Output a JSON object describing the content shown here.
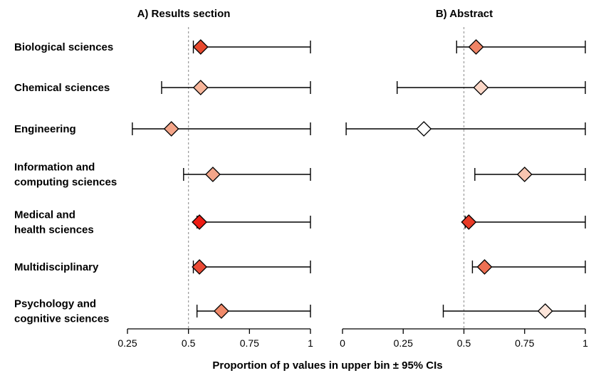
{
  "chart_data": [
    {
      "type": "scatter",
      "title": "A) Results section",
      "xlabel": "Proportion of p values in upper bin ± 95% CIs",
      "xlim": [
        0.25,
        1
      ],
      "xticks": [
        "0.25",
        "0.5",
        "0.75",
        "1"
      ],
      "reference_line": 0.5,
      "categories": [
        "Biological sciences",
        "Chemical sciences",
        "Engineering",
        "Information and computing sciences",
        "Medical and health sciences",
        "Multidisciplinary",
        "Psychology and cognitive sciences"
      ],
      "points": [
        {
          "estimate": 0.55,
          "ci_low": 0.52,
          "ci_high": 1.0,
          "color": "#e8492e"
        },
        {
          "estimate": 0.55,
          "ci_low": 0.39,
          "ci_high": 1.0,
          "color": "#f7b59a"
        },
        {
          "estimate": 0.43,
          "ci_low": 0.27,
          "ci_high": 1.0,
          "color": "#f4a589"
        },
        {
          "estimate": 0.6,
          "ci_low": 0.48,
          "ci_high": 1.0,
          "color": "#f4a589"
        },
        {
          "estimate": 0.545,
          "ci_low": 0.535,
          "ci_high": 1.0,
          "color": "#ee1c14"
        },
        {
          "estimate": 0.545,
          "ci_low": 0.52,
          "ci_high": 1.0,
          "color": "#ea4a35"
        },
        {
          "estimate": 0.635,
          "ci_low": 0.535,
          "ci_high": 1.0,
          "color": "#f08a6a"
        }
      ]
    },
    {
      "type": "scatter",
      "title": "B) Abstract",
      "xlabel": "Proportion of p values in upper bin ± 95% CIs",
      "xlim": [
        0,
        1
      ],
      "xticks": [
        "0",
        "0.25",
        "0.5",
        "0.75",
        "1"
      ],
      "reference_line": 0.5,
      "categories": [
        "Biological sciences",
        "Chemical sciences",
        "Engineering",
        "Information and computing sciences",
        "Medical and health sciences",
        "Multidisciplinary",
        "Psychology and cognitive sciences"
      ],
      "points": [
        {
          "estimate": 0.55,
          "ci_low": 0.47,
          "ci_high": 1.0,
          "color": "#f08466"
        },
        {
          "estimate": 0.57,
          "ci_low": 0.225,
          "ci_high": 1.0,
          "color": "#fbd7c7"
        },
        {
          "estimate": 0.335,
          "ci_low": 0.015,
          "ci_high": 1.0,
          "color": "#ffffff"
        },
        {
          "estimate": 0.75,
          "ci_low": 0.545,
          "ci_high": 1.0,
          "color": "#f8c5b0"
        },
        {
          "estimate": 0.52,
          "ci_low": 0.505,
          "ci_high": 1.0,
          "color": "#e83a26"
        },
        {
          "estimate": 0.585,
          "ci_low": 0.535,
          "ci_high": 1.0,
          "color": "#ee7053"
        },
        {
          "estimate": 0.835,
          "ci_low": 0.415,
          "ci_high": 1.0,
          "color": "#fde5da"
        }
      ]
    }
  ],
  "y_labels": [
    [
      "Biological sciences"
    ],
    [
      "Chemical sciences"
    ],
    [
      "Engineering"
    ],
    [
      "Information and",
      "computing sciences"
    ],
    [
      "Medical and",
      "health sciences"
    ],
    [
      "Multidisciplinary"
    ],
    [
      "Psychology and",
      "cognitive sciences"
    ]
  ]
}
